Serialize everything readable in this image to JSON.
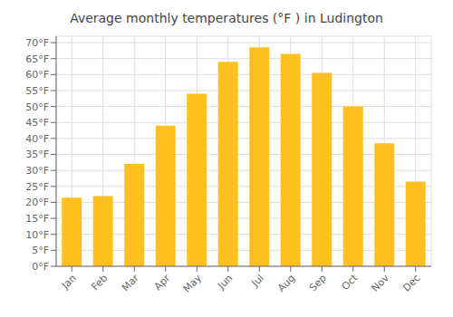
{
  "chart_data": {
    "type": "bar",
    "title": "Average monthly temperatures (°F ) in Ludington",
    "categories": [
      "Jan",
      "Feb",
      "Mar",
      "Apr",
      "May",
      "Jun",
      "Jul",
      "Aug",
      "Sep",
      "Oct",
      "Nov",
      "Dec"
    ],
    "values": [
      21.5,
      22.0,
      32.0,
      44.0,
      54.0,
      64.0,
      68.5,
      66.5,
      60.5,
      50.0,
      38.5,
      26.5
    ],
    "color": "#FFC020",
    "ylim": [
      0,
      72
    ],
    "yticks": [
      {
        "value": 0,
        "label": "0°F"
      },
      {
        "value": 5,
        "label": "5°F"
      },
      {
        "value": 10,
        "label": "10°F"
      },
      {
        "value": 15,
        "label": "15°F"
      },
      {
        "value": 20,
        "label": "20°F"
      },
      {
        "value": 25,
        "label": "25°F"
      },
      {
        "value": 30,
        "label": "30°F"
      },
      {
        "value": 35,
        "label": "35°F"
      },
      {
        "value": 40,
        "label": "40°F"
      },
      {
        "value": 45,
        "label": "45°F"
      },
      {
        "value": 50,
        "label": "50°F"
      },
      {
        "value": 55,
        "label": "55°F"
      },
      {
        "value": 60,
        "label": "60°F"
      },
      {
        "value": 65,
        "label": "65°F"
      },
      {
        "value": 70,
        "label": "70°F"
      }
    ],
    "grid": true
  }
}
